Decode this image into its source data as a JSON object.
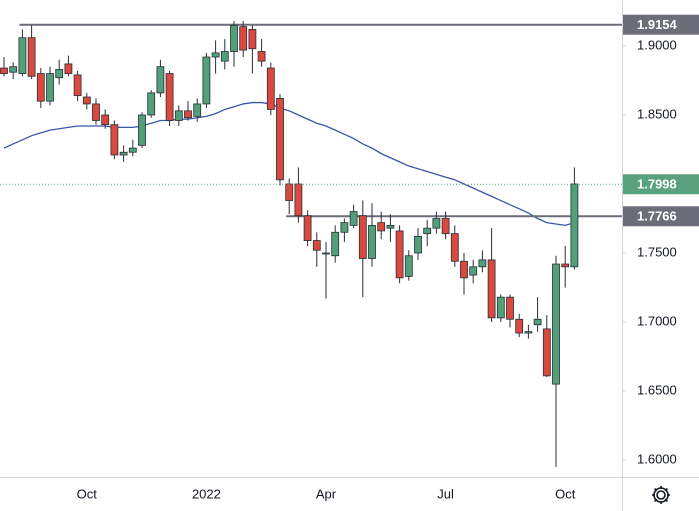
{
  "chart_data": {
    "type": "candlestick",
    "categories": [
      null,
      null,
      null,
      null,
      null,
      null,
      null,
      null,
      null,
      "Oct",
      null,
      null,
      null,
      null,
      null,
      null,
      null,
      null,
      null,
      null,
      null,
      null,
      "2022",
      null,
      null,
      null,
      null,
      null,
      null,
      null,
      null,
      null,
      null,
      null,
      null,
      "Apr",
      null,
      null,
      null,
      null,
      null,
      null,
      null,
      null,
      null,
      null,
      null,
      null,
      "Jul",
      null,
      null,
      null,
      null,
      null,
      null,
      null,
      null,
      null,
      null,
      null,
      null,
      "Oct",
      null
    ],
    "open": [
      1.884,
      1.881,
      1.88,
      1.906,
      1.88,
      1.86,
      1.877,
      1.887,
      1.879,
      1.863,
      1.858,
      1.85,
      1.843,
      1.821,
      1.823,
      1.828,
      1.85,
      1.866,
      1.88,
      1.846,
      1.853,
      1.849,
      1.858,
      1.892,
      1.889,
      1.896,
      1.914,
      1.912,
      1.896,
      1.884,
      1.862,
      1.8,
      1.8,
      1.777,
      1.759,
      1.75,
      1.748,
      1.765,
      1.77,
      1.777,
      1.746,
      1.772,
      1.768,
      1.766,
      1.733,
      1.75,
      1.764,
      1.768,
      1.775,
      1.764,
      1.744,
      1.734,
      1.74,
      1.745,
      1.703,
      1.718,
      1.702,
      1.692,
      1.698,
      1.695,
      1.655,
      1.742,
      1.74
    ],
    "high": [
      1.892,
      1.888,
      1.912,
      1.915,
      1.884,
      1.885,
      1.89,
      1.893,
      1.882,
      1.866,
      1.862,
      1.854,
      1.846,
      1.828,
      1.832,
      1.852,
      1.868,
      1.89,
      1.882,
      1.857,
      1.86,
      1.862,
      1.895,
      1.904,
      1.905,
      1.918,
      1.918,
      1.915,
      1.905,
      1.888,
      1.865,
      1.804,
      1.812,
      1.781,
      1.765,
      1.758,
      1.77,
      1.775,
      1.785,
      1.788,
      1.786,
      1.78,
      1.778,
      1.77,
      1.752,
      1.768,
      1.774,
      1.78,
      1.78,
      1.77,
      1.75,
      1.745,
      1.752,
      1.768,
      1.72,
      1.72,
      1.706,
      1.698,
      1.718,
      1.705,
      1.748,
      1.755,
      1.812
    ],
    "low": [
      1.878,
      1.876,
      1.878,
      1.876,
      1.855,
      1.857,
      1.872,
      1.878,
      1.86,
      1.854,
      1.843,
      1.84,
      1.818,
      1.816,
      1.82,
      1.826,
      1.848,
      1.863,
      1.842,
      1.842,
      1.846,
      1.845,
      1.855,
      1.88,
      1.883,
      1.885,
      1.892,
      1.88,
      1.885,
      1.85,
      1.799,
      1.778,
      1.772,
      1.755,
      1.74,
      1.717,
      1.743,
      1.758,
      1.768,
      1.718,
      1.74,
      1.76,
      1.758,
      1.728,
      1.73,
      1.745,
      1.755,
      1.764,
      1.76,
      1.74,
      1.72,
      1.728,
      1.736,
      1.7,
      1.7,
      1.696,
      1.689,
      1.688,
      1.693,
      1.66,
      1.595,
      1.725,
      1.738
    ],
    "close": [
      1.88,
      1.885,
      1.906,
      1.878,
      1.86,
      1.88,
      1.883,
      1.88,
      1.864,
      1.858,
      1.846,
      1.843,
      1.821,
      1.823,
      1.826,
      1.85,
      1.866,
      1.885,
      1.846,
      1.853,
      1.848,
      1.858,
      1.892,
      1.895,
      1.896,
      1.915,
      1.897,
      1.898,
      1.889,
      1.854,
      1.803,
      1.788,
      1.777,
      1.759,
      1.752,
      1.75,
      1.765,
      1.772,
      1.78,
      1.746,
      1.77,
      1.766,
      1.77,
      1.732,
      1.748,
      1.762,
      1.768,
      1.775,
      1.764,
      1.744,
      1.732,
      1.74,
      1.745,
      1.703,
      1.718,
      1.702,
      1.692,
      1.693,
      1.702,
      1.661,
      1.742,
      1.74,
      1.8
    ],
    "up_color": "#52a07a",
    "down_color": "#d9493f",
    "ma_color": "#3a55a8",
    "ma_values": [
      1.826,
      1.829,
      1.832,
      1.835,
      1.837,
      1.839,
      1.84,
      1.841,
      1.842,
      1.842,
      1.842,
      1.842,
      1.841,
      1.841,
      1.841,
      1.842,
      1.844,
      1.846,
      1.846,
      1.847,
      1.847,
      1.848,
      1.849,
      1.851,
      1.854,
      1.856,
      1.858,
      1.859,
      1.859,
      1.858,
      1.855,
      1.853,
      1.85,
      1.847,
      1.844,
      1.842,
      1.839,
      1.836,
      1.833,
      1.829,
      1.826,
      1.822,
      1.819,
      1.816,
      1.813,
      1.811,
      1.809,
      1.807,
      1.805,
      1.803,
      1.8,
      1.797,
      1.794,
      1.791,
      1.788,
      1.785,
      1.782,
      1.779,
      1.775,
      1.772,
      1.771,
      1.77,
      1.772
    ],
    "levels": [
      {
        "value": 1.9154,
        "color": "#6b6e79"
      },
      {
        "value": 1.7766,
        "color": "#6b6e79"
      }
    ],
    "last_price": 1.7998,
    "last_price_color": "#5aa17f",
    "ylim": [
      1.5877,
      1.9333
    ],
    "yticks": [
      {
        "value": 1.6,
        "label": "1.6000"
      },
      {
        "value": 1.65,
        "label": "1.6500"
      },
      {
        "value": 1.7,
        "label": "1.7000"
      },
      {
        "value": 1.75,
        "label": "1.7500"
      },
      {
        "value": 1.8,
        "label": "1.8000"
      },
      {
        "value": 1.85,
        "label": "1.8500"
      },
      {
        "value": 1.9,
        "label": "1.9000"
      }
    ]
  }
}
